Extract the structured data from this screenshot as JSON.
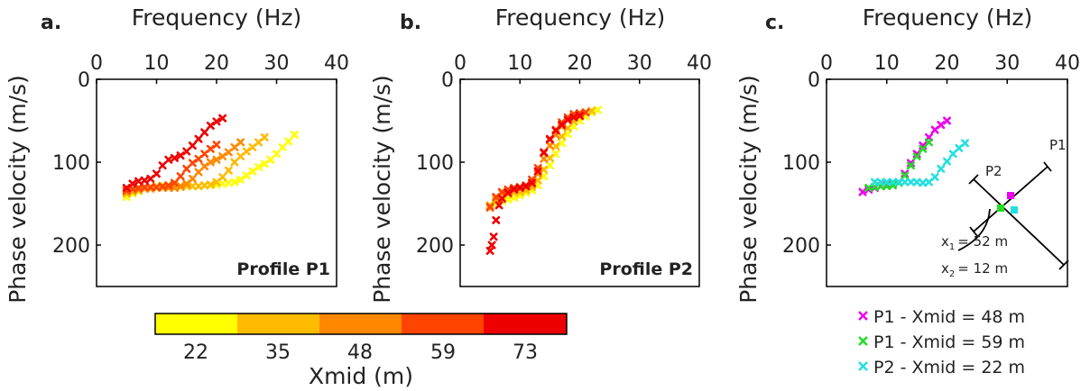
{
  "chart_data": [
    {
      "type": "scatter",
      "panel_letter": "a.",
      "xlabel": "Frequency (Hz)",
      "ylabel": "Phase velocity (m/s)",
      "xlim": [
        0,
        40
      ],
      "ylim": [
        0,
        250
      ],
      "y_inverted": true,
      "x_axis_position": "top",
      "xticks": [
        0,
        10,
        20,
        30,
        40
      ],
      "yticks": [
        0,
        100,
        200
      ],
      "annotation": "Profile P1",
      "marker": "x",
      "series": [
        {
          "xmid": 22,
          "x": [
            5,
            6,
            7,
            8,
            9,
            10,
            11,
            12,
            13,
            14,
            15,
            16,
            17,
            18,
            19,
            20,
            21,
            22,
            23,
            24,
            25,
            26,
            27,
            28,
            29,
            30,
            31,
            32,
            33
          ],
          "y": [
            142,
            138,
            135,
            132,
            130,
            129,
            128,
            128,
            128,
            129,
            129,
            129,
            129,
            128,
            128,
            127,
            126,
            125,
            124,
            121,
            116,
            111,
            106,
            102,
            97,
            90,
            82,
            75,
            67
          ]
        },
        {
          "xmid": 35,
          "x": [
            5,
            6,
            7,
            8,
            9,
            10,
            11,
            12,
            13,
            14,
            15,
            16,
            17,
            18,
            19,
            20,
            21,
            22,
            23,
            24,
            25,
            26,
            27,
            28
          ],
          "y": [
            138,
            136,
            134,
            132,
            131,
            130,
            130,
            130,
            130,
            130,
            129,
            129,
            129,
            128,
            127,
            124,
            118,
            110,
            100,
            93,
            87,
            82,
            76,
            70
          ]
        },
        {
          "xmid": 48,
          "x": [
            5,
            6,
            7,
            8,
            9,
            10,
            11,
            12,
            13,
            14,
            15,
            16,
            17,
            18,
            19,
            20,
            21,
            22,
            23,
            24
          ],
          "y": [
            136,
            134,
            133,
            132,
            132,
            131,
            131,
            131,
            131,
            129,
            126,
            120,
            112,
            105,
            100,
            97,
            93,
            88,
            82,
            76
          ]
        },
        {
          "xmid": 59,
          "x": [
            5,
            6,
            7,
            8,
            9,
            10,
            11,
            12,
            13,
            14,
            15,
            16,
            17,
            18,
            19,
            20
          ],
          "y": [
            134,
            132,
            131,
            130,
            130,
            130,
            129,
            128,
            125,
            117,
            108,
            101,
            96,
            90,
            84,
            79
          ]
        },
        {
          "xmid": 73,
          "x": [
            5,
            6,
            7,
            8,
            9,
            10,
            11,
            12,
            13,
            14,
            15,
            16,
            17,
            18,
            19,
            20,
            21
          ],
          "y": [
            131,
            126,
            123,
            122,
            120,
            114,
            104,
            97,
            95,
            92,
            87,
            80,
            72,
            64,
            56,
            51,
            47
          ]
        }
      ]
    },
    {
      "type": "scatter",
      "panel_letter": "b.",
      "xlabel": "Frequency (Hz)",
      "ylabel": "Phase velocity (m/s)",
      "xlim": [
        0,
        40
      ],
      "ylim": [
        0,
        250
      ],
      "y_inverted": true,
      "x_axis_position": "top",
      "xticks": [
        0,
        10,
        20,
        30,
        40
      ],
      "yticks": [
        0,
        100,
        200
      ],
      "annotation": "Profile P2",
      "marker": "x",
      "series": [
        {
          "xmid": 22,
          "x": [
            6,
            7,
            8,
            9,
            10,
            11,
            12,
            13,
            14,
            15,
            16,
            17,
            18,
            19,
            20,
            21,
            22,
            23
          ],
          "y": [
            150,
            147,
            145,
            143,
            140,
            137,
            134,
            128,
            117,
            104,
            90,
            77,
            66,
            57,
            50,
            45,
            40,
            37
          ]
        },
        {
          "xmid": 35,
          "x": [
            5,
            6,
            7,
            8,
            9,
            10,
            11,
            12,
            13,
            14,
            15,
            16,
            17,
            18,
            19,
            20,
            21,
            22
          ],
          "y": [
            152,
            146,
            142,
            139,
            137,
            136,
            134,
            130,
            122,
            109,
            95,
            81,
            69,
            59,
            51,
            45,
            40,
            38
          ]
        },
        {
          "xmid": 48,
          "x": [
            5,
            6,
            7,
            8,
            9,
            10,
            11,
            12,
            13,
            14,
            15,
            16,
            17,
            18,
            19,
            20,
            21
          ],
          "y": [
            155,
            143,
            137,
            134,
            132,
            131,
            130,
            127,
            114,
            96,
            80,
            67,
            57,
            49,
            44,
            41,
            40
          ]
        },
        {
          "xmid": 59,
          "x": [
            5,
            6,
            7,
            8,
            9,
            10,
            11,
            12,
            13,
            14,
            15,
            16,
            17,
            18,
            19,
            20,
            21
          ],
          "y": [
            154,
            142,
            136,
            133,
            131,
            130,
            128,
            121,
            107,
            89,
            73,
            61,
            52,
            46,
            42,
            41,
            40
          ]
        },
        {
          "xmid": 73,
          "x": [
            5,
            5.3,
            5.6,
            6,
            6.5,
            7,
            8,
            9,
            10,
            11,
            12,
            13,
            14,
            15,
            16,
            17,
            18,
            19,
            20
          ],
          "y": [
            207,
            200,
            190,
            170,
            152,
            144,
            137,
            133,
            131,
            129,
            125,
            111,
            88,
            72,
            62,
            55,
            49,
            46,
            44
          ]
        }
      ]
    },
    {
      "type": "scatter",
      "panel_letter": "c.",
      "xlabel": "Frequency (Hz)",
      "ylabel": "Phase velocity (m/s)",
      "xlim": [
        0,
        40
      ],
      "ylim": [
        0,
        250
      ],
      "y_inverted": true,
      "x_axis_position": "top",
      "xticks": [
        0,
        10,
        20,
        30,
        40
      ],
      "yticks": [
        0,
        100,
        200
      ],
      "marker": "x",
      "series": [
        {
          "name": "P1 - Xmid = 48 m",
          "color": "#ee00ee",
          "x": [
            6,
            7,
            8,
            9,
            10,
            11,
            12,
            13,
            14,
            15,
            16,
            17,
            18,
            19,
            20
          ],
          "y": [
            136,
            133,
            131,
            129,
            128,
            127,
            124,
            114,
            101,
            90,
            80,
            70,
            61,
            55,
            50
          ]
        },
        {
          "name": "P1 - Xmid = 59 m",
          "color": "#22dd22",
          "x": [
            7,
            8,
            9,
            10,
            11,
            12,
            13,
            14,
            15,
            16,
            17
          ],
          "y": [
            131,
            130,
            129,
            129,
            128,
            125,
            116,
            104,
            93,
            84,
            76
          ]
        },
        {
          "name": "P2 - Xmid = 22 m",
          "color": "#22e0e0",
          "x": [
            8,
            9,
            10,
            11,
            12,
            13,
            14,
            15,
            16,
            17,
            18,
            19,
            20,
            21,
            22,
            23
          ],
          "y": [
            124,
            124,
            124,
            124,
            124,
            124,
            124,
            124,
            125,
            124,
            118,
            108,
            99,
            90,
            83,
            77
          ]
        }
      ],
      "inset": {
        "line_labels": [
          "P1",
          "P2"
        ],
        "distance_labels": [
          "x",
          "1",
          "= 52 m",
          "x",
          "2",
          "= 12 m"
        ]
      }
    }
  ],
  "colorbar": {
    "label": "Xmid (m)",
    "ticks": [
      "22",
      "35",
      "48",
      "59",
      "73"
    ],
    "colors": [
      "#ffff00",
      "#ffbb00",
      "#ff8800",
      "#ff4400",
      "#ee0000"
    ]
  }
}
